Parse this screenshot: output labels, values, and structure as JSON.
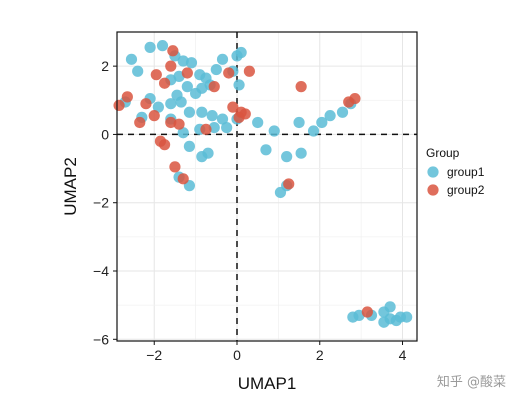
{
  "chart_data": {
    "type": "scatter",
    "xlabel": "UMAP1",
    "ylabel": "UMAP2",
    "xlim": [
      -2.9,
      4.35
    ],
    "ylim": [
      -6.05,
      3.0
    ],
    "xticks": [
      -2,
      0,
      2,
      4
    ],
    "yticks": [
      -6,
      -4,
      -2,
      0,
      2
    ],
    "grid": true,
    "reference_lines": {
      "x": 0,
      "y": 0,
      "style": "dashed"
    },
    "legend": {
      "title": "Group",
      "position": "right"
    },
    "series": [
      {
        "name": "group1",
        "color": "#5BBCD6",
        "points": [
          [
            -2.55,
            2.2
          ],
          [
            -2.4,
            1.85
          ],
          [
            -2.1,
            2.55
          ],
          [
            -1.8,
            2.6
          ],
          [
            -1.5,
            2.3
          ],
          [
            -1.3,
            2.15
          ],
          [
            -1.1,
            2.1
          ],
          [
            -1.4,
            1.7
          ],
          [
            -1.6,
            1.6
          ],
          [
            -0.9,
            1.75
          ],
          [
            -0.75,
            1.65
          ],
          [
            -0.5,
            1.9
          ],
          [
            -0.35,
            2.2
          ],
          [
            -0.1,
            1.85
          ],
          [
            0.1,
            2.4
          ],
          [
            0.0,
            2.3
          ],
          [
            0.05,
            1.45
          ],
          [
            -0.65,
            1.45
          ],
          [
            -0.85,
            1.35
          ],
          [
            -1.2,
            1.4
          ],
          [
            -1.0,
            1.2
          ],
          [
            -1.45,
            1.15
          ],
          [
            -1.35,
            0.95
          ],
          [
            -1.6,
            0.9
          ],
          [
            -1.9,
            0.8
          ],
          [
            -2.1,
            1.05
          ],
          [
            -2.7,
            0.95
          ],
          [
            -2.3,
            0.5
          ],
          [
            -1.6,
            0.45
          ],
          [
            -1.15,
            0.65
          ],
          [
            -0.85,
            0.65
          ],
          [
            -0.6,
            0.55
          ],
          [
            -0.35,
            0.45
          ],
          [
            -0.9,
            0.15
          ],
          [
            -0.55,
            0.2
          ],
          [
            -0.25,
            0.2
          ],
          [
            0.0,
            0.45
          ],
          [
            0.5,
            0.35
          ],
          [
            0.9,
            0.1
          ],
          [
            1.5,
            0.35
          ],
          [
            1.85,
            0.1
          ],
          [
            2.05,
            0.35
          ],
          [
            2.25,
            0.55
          ],
          [
            2.55,
            0.65
          ],
          [
            2.75,
            0.9
          ],
          [
            -1.3,
            0.05
          ],
          [
            -1.15,
            -0.35
          ],
          [
            -0.85,
            -0.65
          ],
          [
            -0.7,
            -0.55
          ],
          [
            0.7,
            -0.45
          ],
          [
            1.2,
            -0.65
          ],
          [
            1.55,
            -0.55
          ],
          [
            -1.4,
            -1.25
          ],
          [
            -1.15,
            -1.5
          ],
          [
            1.2,
            -1.5
          ],
          [
            1.05,
            -1.7
          ],
          [
            2.8,
            -5.35
          ],
          [
            2.95,
            -5.3
          ],
          [
            3.25,
            -5.3
          ],
          [
            3.55,
            -5.2
          ],
          [
            3.7,
            -5.05
          ],
          [
            3.7,
            -5.4
          ],
          [
            3.55,
            -5.5
          ],
          [
            3.85,
            -5.45
          ],
          [
            4.1,
            -5.35
          ],
          [
            3.95,
            -5.35
          ]
        ]
      },
      {
        "name": "group2",
        "color": "#D9553F",
        "points": [
          [
            -2.65,
            1.1
          ],
          [
            -2.85,
            0.85
          ],
          [
            -2.2,
            0.9
          ],
          [
            -1.95,
            1.75
          ],
          [
            -1.75,
            1.5
          ],
          [
            -1.6,
            2.0
          ],
          [
            -1.55,
            2.45
          ],
          [
            -1.2,
            1.8
          ],
          [
            -0.2,
            1.8
          ],
          [
            0.3,
            1.85
          ],
          [
            -0.55,
            1.4
          ],
          [
            -2.35,
            0.35
          ],
          [
            -2.0,
            0.55
          ],
          [
            -1.85,
            -0.2
          ],
          [
            -1.75,
            -0.3
          ],
          [
            -1.6,
            0.35
          ],
          [
            -1.4,
            0.3
          ],
          [
            -0.75,
            0.15
          ],
          [
            -0.1,
            0.8
          ],
          [
            0.1,
            0.65
          ],
          [
            0.05,
            0.5
          ],
          [
            0.2,
            0.6
          ],
          [
            -1.5,
            -0.95
          ],
          [
            -1.3,
            -1.3
          ],
          [
            1.25,
            -1.45
          ],
          [
            1.55,
            1.4
          ],
          [
            2.7,
            0.95
          ],
          [
            2.85,
            1.05
          ],
          [
            3.15,
            -5.2
          ]
        ]
      }
    ]
  },
  "watermark": "知乎 @酸菜"
}
